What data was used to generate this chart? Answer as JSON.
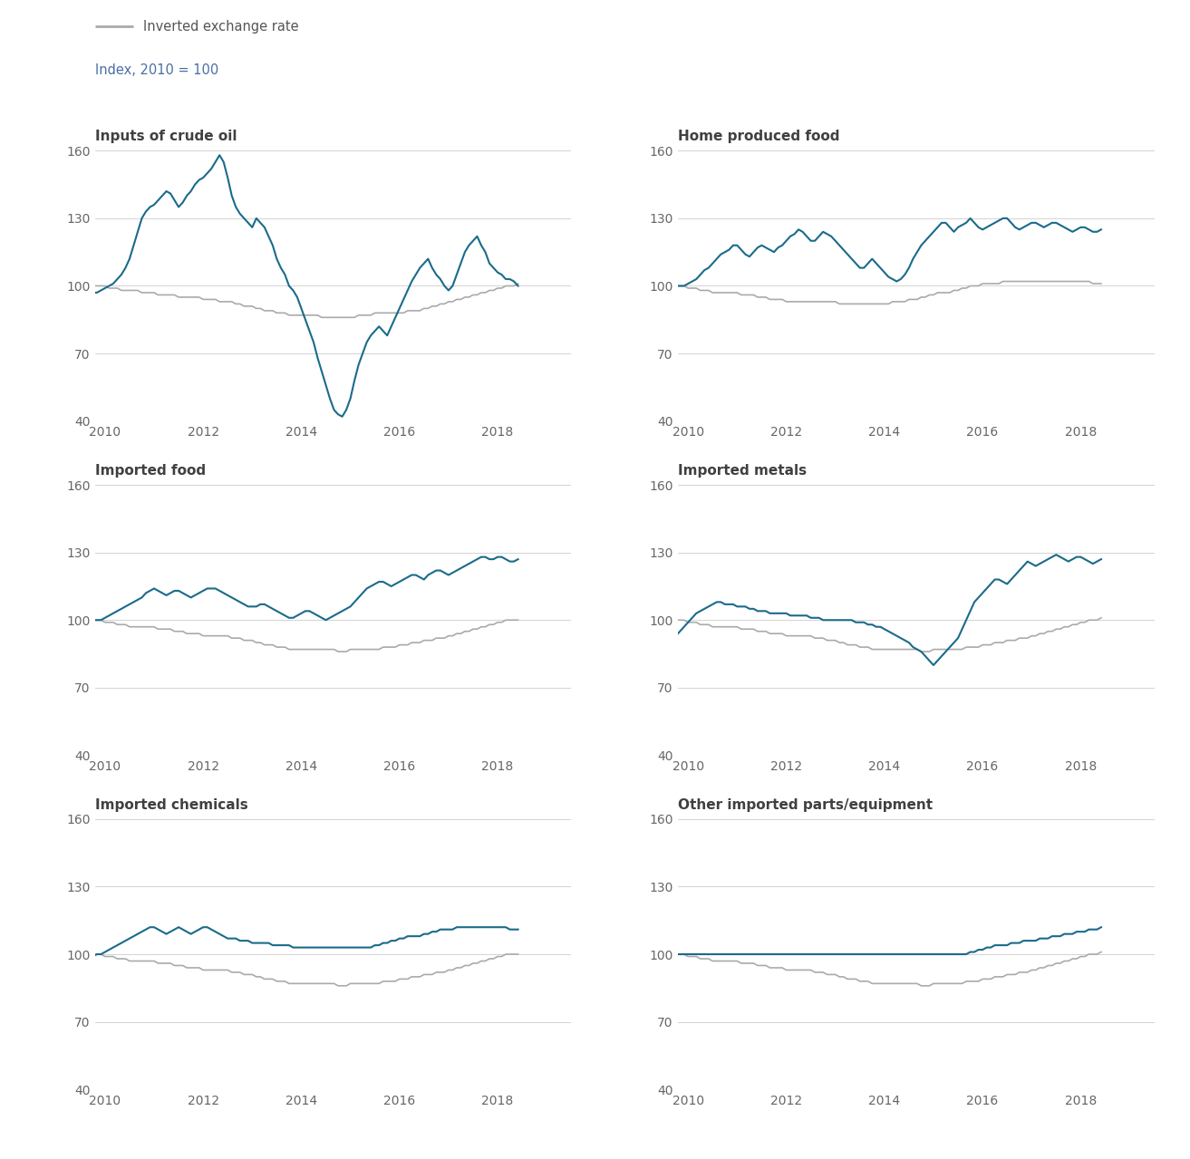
{
  "legend_label": "Inverted exchange rate",
  "index_label": "Index, 2010 = 100",
  "legend_line_color": "#aaaaaa",
  "blue_color": "#1a6b8a",
  "gray_color": "#aaaaaa",
  "ylim": [
    40,
    160
  ],
  "yticks": [
    40,
    70,
    100,
    130,
    160
  ],
  "xlim_start": 2009.75,
  "xlim_end": 2019.6,
  "xticks": [
    2010,
    2012,
    2014,
    2016,
    2018
  ],
  "subplots": [
    {
      "title": "Inputs of crude oil",
      "blue": [
        97,
        97,
        98,
        99,
        100,
        101,
        103,
        105,
        108,
        112,
        118,
        124,
        130,
        133,
        135,
        136,
        138,
        140,
        142,
        141,
        138,
        135,
        137,
        140,
        142,
        145,
        147,
        148,
        150,
        152,
        155,
        158,
        155,
        148,
        140,
        135,
        132,
        130,
        128,
        126,
        130,
        128,
        126,
        122,
        118,
        112,
        108,
        105,
        100,
        98,
        95,
        90,
        85,
        80,
        75,
        68,
        62,
        56,
        50,
        45,
        43,
        42,
        45,
        50,
        58,
        65,
        70,
        75,
        78,
        80,
        82,
        80,
        78,
        82,
        86,
        90,
        94,
        98,
        102,
        105,
        108,
        110,
        112,
        108,
        105,
        103,
        100,
        98,
        100,
        105,
        110,
        115,
        118,
        120,
        122,
        118,
        115,
        110,
        108,
        106,
        105,
        103,
        103,
        102,
        100
      ],
      "gray": [
        100,
        100,
        100,
        100,
        99,
        99,
        99,
        98,
        98,
        98,
        98,
        98,
        97,
        97,
        97,
        97,
        96,
        96,
        96,
        96,
        96,
        95,
        95,
        95,
        95,
        95,
        95,
        94,
        94,
        94,
        94,
        93,
        93,
        93,
        93,
        92,
        92,
        91,
        91,
        91,
        90,
        90,
        89,
        89,
        89,
        88,
        88,
        88,
        87,
        87,
        87,
        87,
        87,
        87,
        87,
        87,
        86,
        86,
        86,
        86,
        86,
        86,
        86,
        86,
        86,
        87,
        87,
        87,
        87,
        88,
        88,
        88,
        88,
        88,
        88,
        88,
        88,
        89,
        89,
        89,
        89,
        90,
        90,
        91,
        91,
        92,
        92,
        93,
        93,
        94,
        94,
        95,
        95,
        96,
        96,
        97,
        97,
        98,
        98,
        99,
        99,
        100,
        100,
        100,
        101
      ]
    },
    {
      "title": "Home produced food",
      "blue": [
        100,
        100,
        100,
        101,
        102,
        103,
        105,
        107,
        108,
        110,
        112,
        114,
        115,
        116,
        118,
        118,
        116,
        114,
        113,
        115,
        117,
        118,
        117,
        116,
        115,
        117,
        118,
        120,
        122,
        123,
        125,
        124,
        122,
        120,
        120,
        122,
        124,
        123,
        122,
        120,
        118,
        116,
        114,
        112,
        110,
        108,
        108,
        110,
        112,
        110,
        108,
        106,
        104,
        103,
        102,
        103,
        105,
        108,
        112,
        115,
        118,
        120,
        122,
        124,
        126,
        128,
        128,
        126,
        124,
        126,
        127,
        128,
        130,
        128,
        126,
        125,
        126,
        127,
        128,
        129,
        130,
        130,
        128,
        126,
        125,
        126,
        127,
        128,
        128,
        127,
        126,
        127,
        128,
        128,
        127,
        126,
        125,
        124,
        125,
        126,
        126,
        125,
        124,
        124,
        125
      ],
      "gray": [
        100,
        100,
        100,
        99,
        99,
        99,
        98,
        98,
        98,
        97,
        97,
        97,
        97,
        97,
        97,
        97,
        96,
        96,
        96,
        96,
        95,
        95,
        95,
        94,
        94,
        94,
        94,
        93,
        93,
        93,
        93,
        93,
        93,
        93,
        93,
        93,
        93,
        93,
        93,
        93,
        92,
        92,
        92,
        92,
        92,
        92,
        92,
        92,
        92,
        92,
        92,
        92,
        92,
        93,
        93,
        93,
        93,
        94,
        94,
        94,
        95,
        95,
        96,
        96,
        97,
        97,
        97,
        97,
        98,
        98,
        99,
        99,
        100,
        100,
        100,
        101,
        101,
        101,
        101,
        101,
        102,
        102,
        102,
        102,
        102,
        102,
        102,
        102,
        102,
        102,
        102,
        102,
        102,
        102,
        102,
        102,
        102,
        102,
        102,
        102,
        102,
        102,
        101,
        101,
        101
      ]
    },
    {
      "title": "Imported food",
      "blue": [
        100,
        100,
        100,
        101,
        102,
        103,
        104,
        105,
        106,
        107,
        108,
        109,
        110,
        112,
        113,
        114,
        113,
        112,
        111,
        112,
        113,
        113,
        112,
        111,
        110,
        111,
        112,
        113,
        114,
        114,
        114,
        113,
        112,
        111,
        110,
        109,
        108,
        107,
        106,
        106,
        106,
        107,
        107,
        106,
        105,
        104,
        103,
        102,
        101,
        101,
        102,
        103,
        104,
        104,
        103,
        102,
        101,
        100,
        101,
        102,
        103,
        104,
        105,
        106,
        108,
        110,
        112,
        114,
        115,
        116,
        117,
        117,
        116,
        115,
        116,
        117,
        118,
        119,
        120,
        120,
        119,
        118,
        120,
        121,
        122,
        122,
        121,
        120,
        121,
        122,
        123,
        124,
        125,
        126,
        127,
        128,
        128,
        127,
        127,
        128,
        128,
        127,
        126,
        126,
        127
      ],
      "gray": [
        100,
        100,
        100,
        99,
        99,
        99,
        98,
        98,
        98,
        97,
        97,
        97,
        97,
        97,
        97,
        97,
        96,
        96,
        96,
        96,
        95,
        95,
        95,
        94,
        94,
        94,
        94,
        93,
        93,
        93,
        93,
        93,
        93,
        93,
        92,
        92,
        92,
        91,
        91,
        91,
        90,
        90,
        89,
        89,
        89,
        88,
        88,
        88,
        87,
        87,
        87,
        87,
        87,
        87,
        87,
        87,
        87,
        87,
        87,
        87,
        86,
        86,
        86,
        87,
        87,
        87,
        87,
        87,
        87,
        87,
        87,
        88,
        88,
        88,
        88,
        89,
        89,
        89,
        90,
        90,
        90,
        91,
        91,
        91,
        92,
        92,
        92,
        93,
        93,
        94,
        94,
        95,
        95,
        96,
        96,
        97,
        97,
        98,
        98,
        99,
        99,
        100,
        100,
        100,
        100
      ]
    },
    {
      "title": "Imported metals",
      "blue": [
        93,
        95,
        97,
        99,
        101,
        103,
        104,
        105,
        106,
        107,
        108,
        108,
        107,
        107,
        107,
        106,
        106,
        106,
        105,
        105,
        104,
        104,
        104,
        103,
        103,
        103,
        103,
        103,
        102,
        102,
        102,
        102,
        102,
        101,
        101,
        101,
        100,
        100,
        100,
        100,
        100,
        100,
        100,
        100,
        99,
        99,
        99,
        98,
        98,
        97,
        97,
        96,
        95,
        94,
        93,
        92,
        91,
        90,
        88,
        87,
        86,
        84,
        82,
        80,
        82,
        84,
        86,
        88,
        90,
        92,
        96,
        100,
        104,
        108,
        110,
        112,
        114,
        116,
        118,
        118,
        117,
        116,
        118,
        120,
        122,
        124,
        126,
        125,
        124,
        125,
        126,
        127,
        128,
        129,
        128,
        127,
        126,
        127,
        128,
        128,
        127,
        126,
        125,
        126,
        127
      ],
      "gray": [
        100,
        100,
        100,
        99,
        99,
        99,
        98,
        98,
        98,
        97,
        97,
        97,
        97,
        97,
        97,
        97,
        96,
        96,
        96,
        96,
        95,
        95,
        95,
        94,
        94,
        94,
        94,
        93,
        93,
        93,
        93,
        93,
        93,
        93,
        92,
        92,
        92,
        91,
        91,
        91,
        90,
        90,
        89,
        89,
        89,
        88,
        88,
        88,
        87,
        87,
        87,
        87,
        87,
        87,
        87,
        87,
        87,
        87,
        87,
        87,
        86,
        86,
        86,
        87,
        87,
        87,
        87,
        87,
        87,
        87,
        87,
        88,
        88,
        88,
        88,
        89,
        89,
        89,
        90,
        90,
        90,
        91,
        91,
        91,
        92,
        92,
        92,
        93,
        93,
        94,
        94,
        95,
        95,
        96,
        96,
        97,
        97,
        98,
        98,
        99,
        99,
        100,
        100,
        100,
        101
      ]
    },
    {
      "title": "Imported chemicals",
      "blue": [
        99,
        100,
        100,
        101,
        102,
        103,
        104,
        105,
        106,
        107,
        108,
        109,
        110,
        111,
        112,
        112,
        111,
        110,
        109,
        110,
        111,
        112,
        111,
        110,
        109,
        110,
        111,
        112,
        112,
        111,
        110,
        109,
        108,
        107,
        107,
        107,
        106,
        106,
        106,
        105,
        105,
        105,
        105,
        105,
        104,
        104,
        104,
        104,
        104,
        103,
        103,
        103,
        103,
        103,
        103,
        103,
        103,
        103,
        103,
        103,
        103,
        103,
        103,
        103,
        103,
        103,
        103,
        103,
        103,
        104,
        104,
        105,
        105,
        106,
        106,
        107,
        107,
        108,
        108,
        108,
        108,
        109,
        109,
        110,
        110,
        111,
        111,
        111,
        111,
        112,
        112,
        112,
        112,
        112,
        112,
        112,
        112,
        112,
        112,
        112,
        112,
        112,
        111,
        111,
        111
      ],
      "gray": [
        100,
        100,
        100,
        99,
        99,
        99,
        98,
        98,
        98,
        97,
        97,
        97,
        97,
        97,
        97,
        97,
        96,
        96,
        96,
        96,
        95,
        95,
        95,
        94,
        94,
        94,
        94,
        93,
        93,
        93,
        93,
        93,
        93,
        93,
        92,
        92,
        92,
        91,
        91,
        91,
        90,
        90,
        89,
        89,
        89,
        88,
        88,
        88,
        87,
        87,
        87,
        87,
        87,
        87,
        87,
        87,
        87,
        87,
        87,
        87,
        86,
        86,
        86,
        87,
        87,
        87,
        87,
        87,
        87,
        87,
        87,
        88,
        88,
        88,
        88,
        89,
        89,
        89,
        90,
        90,
        90,
        91,
        91,
        91,
        92,
        92,
        92,
        93,
        93,
        94,
        94,
        95,
        95,
        96,
        96,
        97,
        97,
        98,
        98,
        99,
        99,
        100,
        100,
        100,
        100
      ]
    },
    {
      "title": "Other imported parts/equipment",
      "blue": [
        100,
        100,
        100,
        100,
        100,
        100,
        100,
        100,
        100,
        100,
        100,
        100,
        100,
        100,
        100,
        100,
        100,
        100,
        100,
        100,
        100,
        100,
        100,
        100,
        100,
        100,
        100,
        100,
        100,
        100,
        100,
        100,
        100,
        100,
        100,
        100,
        100,
        100,
        100,
        100,
        100,
        100,
        100,
        100,
        100,
        100,
        100,
        100,
        100,
        100,
        100,
        100,
        100,
        100,
        100,
        100,
        100,
        100,
        100,
        100,
        100,
        100,
        100,
        100,
        100,
        100,
        100,
        100,
        100,
        100,
        100,
        100,
        101,
        101,
        102,
        102,
        103,
        103,
        104,
        104,
        104,
        104,
        105,
        105,
        105,
        106,
        106,
        106,
        106,
        107,
        107,
        107,
        108,
        108,
        108,
        109,
        109,
        109,
        110,
        110,
        110,
        111,
        111,
        111,
        112
      ],
      "gray": [
        100,
        100,
        100,
        99,
        99,
        99,
        98,
        98,
        98,
        97,
        97,
        97,
        97,
        97,
        97,
        97,
        96,
        96,
        96,
        96,
        95,
        95,
        95,
        94,
        94,
        94,
        94,
        93,
        93,
        93,
        93,
        93,
        93,
        93,
        92,
        92,
        92,
        91,
        91,
        91,
        90,
        90,
        89,
        89,
        89,
        88,
        88,
        88,
        87,
        87,
        87,
        87,
        87,
        87,
        87,
        87,
        87,
        87,
        87,
        87,
        86,
        86,
        86,
        87,
        87,
        87,
        87,
        87,
        87,
        87,
        87,
        88,
        88,
        88,
        88,
        89,
        89,
        89,
        90,
        90,
        90,
        91,
        91,
        91,
        92,
        92,
        92,
        93,
        93,
        94,
        94,
        95,
        95,
        96,
        96,
        97,
        97,
        98,
        98,
        99,
        99,
        100,
        100,
        100,
        101
      ]
    }
  ]
}
